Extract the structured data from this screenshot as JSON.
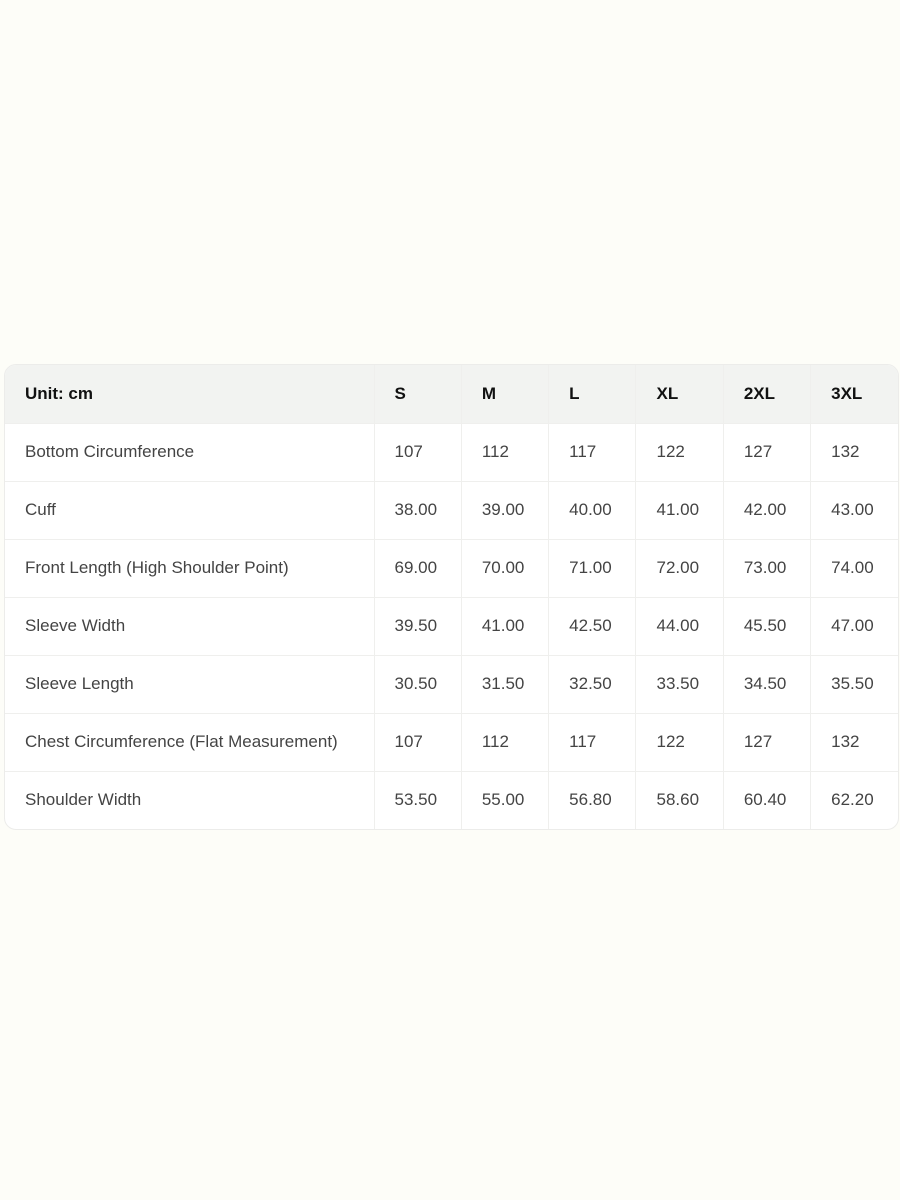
{
  "table": {
    "headers": [
      "Unit: cm",
      "S",
      "M",
      "L",
      "XL",
      "2XL",
      "3XL"
    ],
    "rows": [
      [
        "Bottom Circumference",
        "107",
        "112",
        "117",
        "122",
        "127",
        "132"
      ],
      [
        "Cuff",
        "38.00",
        "39.00",
        "40.00",
        "41.00",
        "42.00",
        "43.00"
      ],
      [
        "Front Length (High Shoulder Point)",
        "69.00",
        "70.00",
        "71.00",
        "72.00",
        "73.00",
        "74.00"
      ],
      [
        "Sleeve Width",
        "39.50",
        "41.00",
        "42.50",
        "44.00",
        "45.50",
        "47.00"
      ],
      [
        "Sleeve Length",
        "30.50",
        "31.50",
        "32.50",
        "33.50",
        "34.50",
        "35.50"
      ],
      [
        "Chest Circumference (Flat Measurement)",
        "107",
        "112",
        "117",
        "122",
        "127",
        "132"
      ],
      [
        "Shoulder Width",
        "53.50",
        "55.00",
        "56.80",
        "58.60",
        "60.40",
        "62.20"
      ]
    ]
  }
}
